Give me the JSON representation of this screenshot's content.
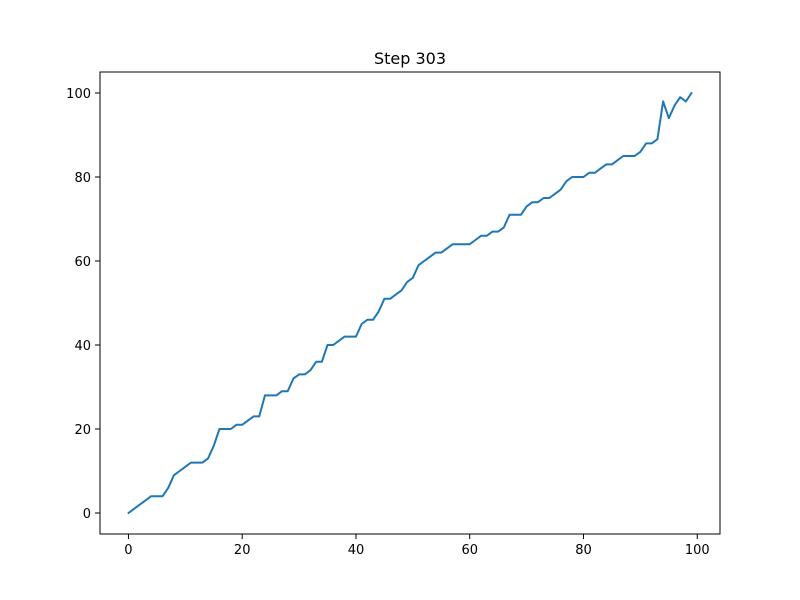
{
  "chart_data": {
    "type": "line",
    "title": "Step 303",
    "xlabel": "",
    "ylabel": "",
    "xlim": [
      -5,
      104
    ],
    "ylim": [
      -5,
      105
    ],
    "xticks": [
      0,
      20,
      40,
      60,
      80,
      100
    ],
    "yticks": [
      0,
      20,
      40,
      60,
      80,
      100
    ],
    "grid": false,
    "series": [
      {
        "color": "#1f77b4",
        "x": [
          0,
          1,
          2,
          3,
          4,
          5,
          6,
          7,
          8,
          9,
          10,
          11,
          12,
          13,
          14,
          15,
          16,
          17,
          18,
          19,
          20,
          21,
          22,
          23,
          24,
          25,
          26,
          27,
          28,
          29,
          30,
          31,
          32,
          33,
          34,
          35,
          36,
          37,
          38,
          39,
          40,
          41,
          42,
          43,
          44,
          45,
          46,
          47,
          48,
          49,
          50,
          51,
          52,
          53,
          54,
          55,
          56,
          57,
          58,
          59,
          60,
          61,
          62,
          63,
          64,
          65,
          66,
          67,
          68,
          69,
          70,
          71,
          72,
          73,
          74,
          75,
          76,
          77,
          78,
          79,
          80,
          81,
          82,
          83,
          84,
          85,
          86,
          87,
          88,
          89,
          90,
          91,
          92,
          93,
          94,
          95,
          96,
          97,
          98,
          99
        ],
        "y": [
          0,
          1,
          2,
          3,
          4,
          4,
          4,
          6,
          9,
          10,
          11,
          12,
          12,
          12,
          13,
          16,
          20,
          20,
          20,
          21,
          21,
          22,
          23,
          23,
          28,
          28,
          28,
          29,
          29,
          32,
          33,
          33,
          34,
          36,
          36,
          40,
          40,
          41,
          42,
          42,
          42,
          45,
          46,
          46,
          48,
          51,
          51,
          52,
          53,
          55,
          56,
          59,
          60,
          61,
          62,
          62,
          63,
          64,
          64,
          64,
          64,
          65,
          66,
          66,
          67,
          67,
          68,
          71,
          71,
          71,
          73,
          74,
          74,
          75,
          75,
          76,
          77,
          79,
          80,
          80,
          80,
          81,
          81,
          82,
          83,
          83,
          84,
          85,
          85,
          85,
          86,
          88,
          88,
          89,
          98,
          94,
          97,
          99,
          98,
          100
        ]
      }
    ]
  }
}
